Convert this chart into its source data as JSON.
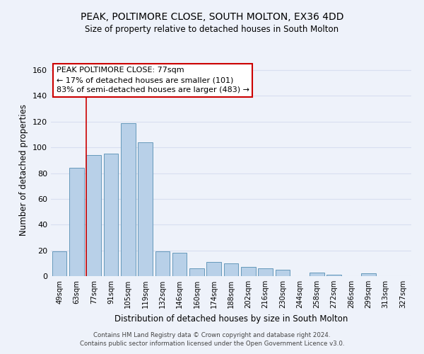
{
  "title": "PEAK, POLTIMORE CLOSE, SOUTH MOLTON, EX36 4DD",
  "subtitle": "Size of property relative to detached houses in South Molton",
  "xlabel": "Distribution of detached houses by size in South Molton",
  "ylabel": "Number of detached properties",
  "footnote1": "Contains HM Land Registry data © Crown copyright and database right 2024.",
  "footnote2": "Contains public sector information licensed under the Open Government Licence v3.0.",
  "bar_labels": [
    "49sqm",
    "63sqm",
    "77sqm",
    "91sqm",
    "105sqm",
    "119sqm",
    "132sqm",
    "146sqm",
    "160sqm",
    "174sqm",
    "188sqm",
    "202sqm",
    "216sqm",
    "230sqm",
    "244sqm",
    "258sqm",
    "272sqm",
    "286sqm",
    "299sqm",
    "313sqm",
    "327sqm"
  ],
  "bar_values": [
    19,
    84,
    94,
    95,
    119,
    104,
    19,
    18,
    6,
    11,
    10,
    7,
    6,
    5,
    0,
    3,
    1,
    0,
    2,
    0,
    0
  ],
  "bar_color": "#b8d0e8",
  "bar_edge_color": "#6699bb",
  "highlight_bar_index": 2,
  "highlight_line_color": "#cc0000",
  "ylim": [
    0,
    165
  ],
  "yticks": [
    0,
    20,
    40,
    60,
    80,
    100,
    120,
    140,
    160
  ],
  "annotation_title": "PEAK POLTIMORE CLOSE: 77sqm",
  "annotation_line1": "← 17% of detached houses are smaller (101)",
  "annotation_line2": "83% of semi-detached houses are larger (483) →",
  "annotation_box_facecolor": "#ffffff",
  "annotation_box_edgecolor": "#cc0000",
  "grid_color": "#d8dff0",
  "background_color": "#eef2fa"
}
